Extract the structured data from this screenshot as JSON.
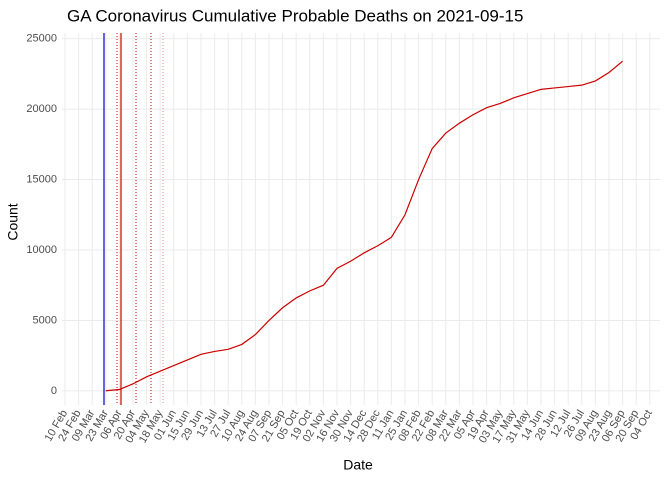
{
  "chart_data": {
    "type": "line",
    "title": "GA Coronavirus Cumulative Probable Deaths on 2021-09-15",
    "x_label": "Date",
    "y_label": "Count",
    "categories": [
      "10 Feb",
      "24 Feb",
      "09 Mar",
      "23 Mar",
      "06 Apr",
      "20 Apr",
      "04 May",
      "18 May",
      "01 Jun",
      "15 Jun",
      "29 Jun",
      "13 Jul",
      "27 Jul",
      "10 Aug",
      "24 Aug",
      "07 Sep",
      "21 Sep",
      "05 Oct",
      "19 Oct",
      "02 Nov",
      "16 Nov",
      "30 Nov",
      "14 Dec",
      "28 Dec",
      "11 Jan",
      "25 Jan",
      "08 Feb",
      "22 Feb",
      "08 Mar",
      "22 Mar",
      "05 Apr",
      "19 Apr",
      "03 May",
      "17 May",
      "31 May",
      "14 Jun",
      "28 Jun",
      "12 Jul",
      "26 Jul",
      "09 Aug",
      "23 Aug",
      "06 Sep",
      "20 Sep",
      "04 Oct"
    ],
    "series": [
      {
        "name": "Count",
        "color": "#cc0000",
        "values": [
          null,
          null,
          null,
          10,
          100,
          500,
          1000,
          1400,
          1800,
          2200,
          2600,
          2800,
          2950,
          3300,
          4000,
          5000,
          5900,
          6600,
          7100,
          7500,
          8700,
          9200,
          9800,
          10300,
          10900,
          12500,
          15000,
          17200,
          18300,
          19000,
          19600,
          20100,
          20400,
          20800,
          21100,
          21400,
          21500,
          21600,
          21700,
          22000,
          22600,
          23400,
          null,
          null
        ]
      }
    ],
    "ylim": [
      -1000,
      25400
    ],
    "yticks": [
      0,
      5000,
      10000,
      15000,
      20000,
      25000
    ],
    "grid": true
  }
}
